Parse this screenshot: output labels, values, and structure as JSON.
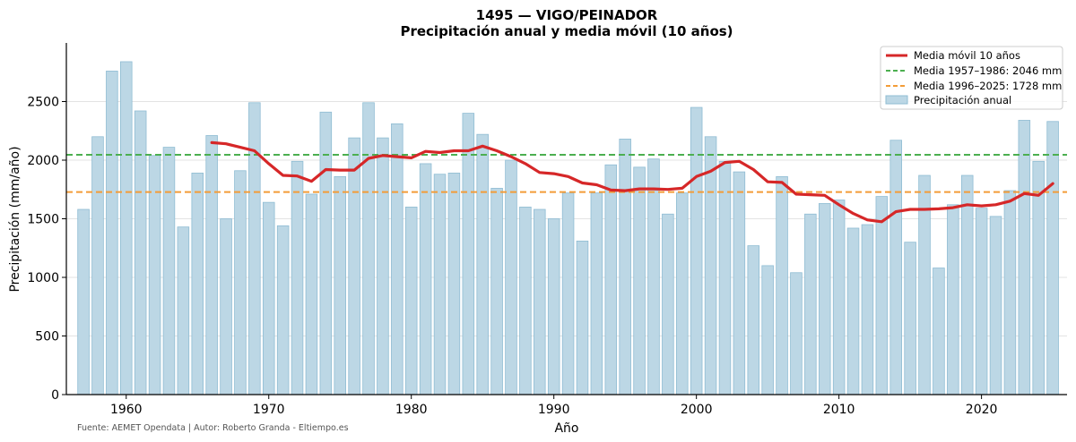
{
  "chart_data": {
    "type": "bar",
    "title": "1495 — VIGO/PEINADOR",
    "subtitle": "Precipitación anual y media móvil (10 años)",
    "xlabel": "Año",
    "ylabel": "Precipitación (mm/año)",
    "xlim": [
      1955.8,
      2026.0
    ],
    "ylim": [
      0,
      3000
    ],
    "xticks": [
      1960,
      1970,
      1980,
      1990,
      2000,
      2010,
      2020
    ],
    "yticks": [
      0,
      500,
      1000,
      1500,
      2000,
      2500
    ],
    "grid": "horizontal",
    "legend_position": "top-right",
    "source": "Fuente: AEMET Opendata | Autor: Roberto Granda - Eltiempo.es",
    "colors": {
      "bar_fill": "#bcd7e5",
      "bar_edge": "#8fbcd3",
      "moving_avg": "#d62728",
      "mean_1957_1986": "#4caf50",
      "mean_1996_2025": "#f39c38"
    },
    "bars": {
      "name": "Precipitación anual",
      "x": [
        1957,
        1958,
        1959,
        1960,
        1961,
        1962,
        1963,
        1964,
        1965,
        1966,
        1967,
        1968,
        1969,
        1970,
        1971,
        1972,
        1973,
        1974,
        1975,
        1976,
        1977,
        1978,
        1979,
        1980,
        1981,
        1982,
        1983,
        1984,
        1985,
        1986,
        1987,
        1988,
        1989,
        1990,
        1991,
        1992,
        1993,
        1994,
        1995,
        1996,
        1997,
        1998,
        1999,
        2000,
        2001,
        2002,
        2003,
        2004,
        2005,
        2006,
        2007,
        2008,
        2009,
        2010,
        2011,
        2012,
        2013,
        2014,
        2015,
        2016,
        2017,
        2018,
        2019,
        2020,
        2021,
        2022,
        2023,
        2024,
        2025
      ],
      "values": [
        1580,
        2200,
        2760,
        2840,
        2420,
        2040,
        2110,
        1430,
        1890,
        2210,
        1500,
        1910,
        2490,
        1640,
        1440,
        1990,
        1710,
        2410,
        1860,
        2190,
        2490,
        2190,
        2310,
        1600,
        1970,
        1880,
        1890,
        2400,
        2220,
        1760,
        2000,
        1600,
        1580,
        1500,
        1720,
        1310,
        1720,
        1960,
        2180,
        1940,
        2010,
        1540,
        1720,
        2450,
        2200,
        1990,
        1900,
        1270,
        1100,
        1860,
        1040,
        1540,
        1630,
        1660,
        1420,
        1450,
        1690,
        2170,
        1300,
        1870,
        1080,
        1620,
        1870,
        1590,
        1520,
        1740,
        2340,
        1990,
        2330
      ]
    },
    "moving_average": {
      "name": "Media móvil 10 años",
      "x": [
        1966,
        1967,
        1968,
        1969,
        1970,
        1971,
        1972,
        1973,
        1974,
        1975,
        1976,
        1977,
        1978,
        1979,
        1980,
        1981,
        1982,
        1983,
        1984,
        1985,
        1986,
        1987,
        1988,
        1989,
        1990,
        1991,
        1992,
        1993,
        1994,
        1995,
        1996,
        1997,
        1998,
        1999,
        2000,
        2001,
        2002,
        2003,
        2004,
        2005,
        2006,
        2007,
        2008,
        2009,
        2010,
        2011,
        2012,
        2013,
        2014,
        2015,
        2016,
        2017,
        2018,
        2019,
        2020,
        2021,
        2022,
        2023,
        2024,
        2025
      ],
      "values": [
        2150,
        2140,
        2110,
        2080,
        1970,
        1870,
        1865,
        1820,
        1920,
        1915,
        1915,
        2015,
        2040,
        2030,
        2020,
        2075,
        2065,
        2080,
        2080,
        2120,
        2080,
        2030,
        1970,
        1895,
        1885,
        1860,
        1805,
        1790,
        1745,
        1740,
        1755,
        1755,
        1750,
        1760,
        1860,
        1905,
        1980,
        1990,
        1920,
        1815,
        1810,
        1710,
        1705,
        1700,
        1620,
        1545,
        1490,
        1475,
        1560,
        1580,
        1580,
        1585,
        1595,
        1620,
        1610,
        1620,
        1650,
        1715,
        1700,
        1800
      ]
    },
    "reference_lines": [
      {
        "name": "Media 1957–1986: 2046 mm",
        "value": 2046
      },
      {
        "name": "Media 1996–2025: 1728 mm",
        "value": 1728
      }
    ]
  }
}
